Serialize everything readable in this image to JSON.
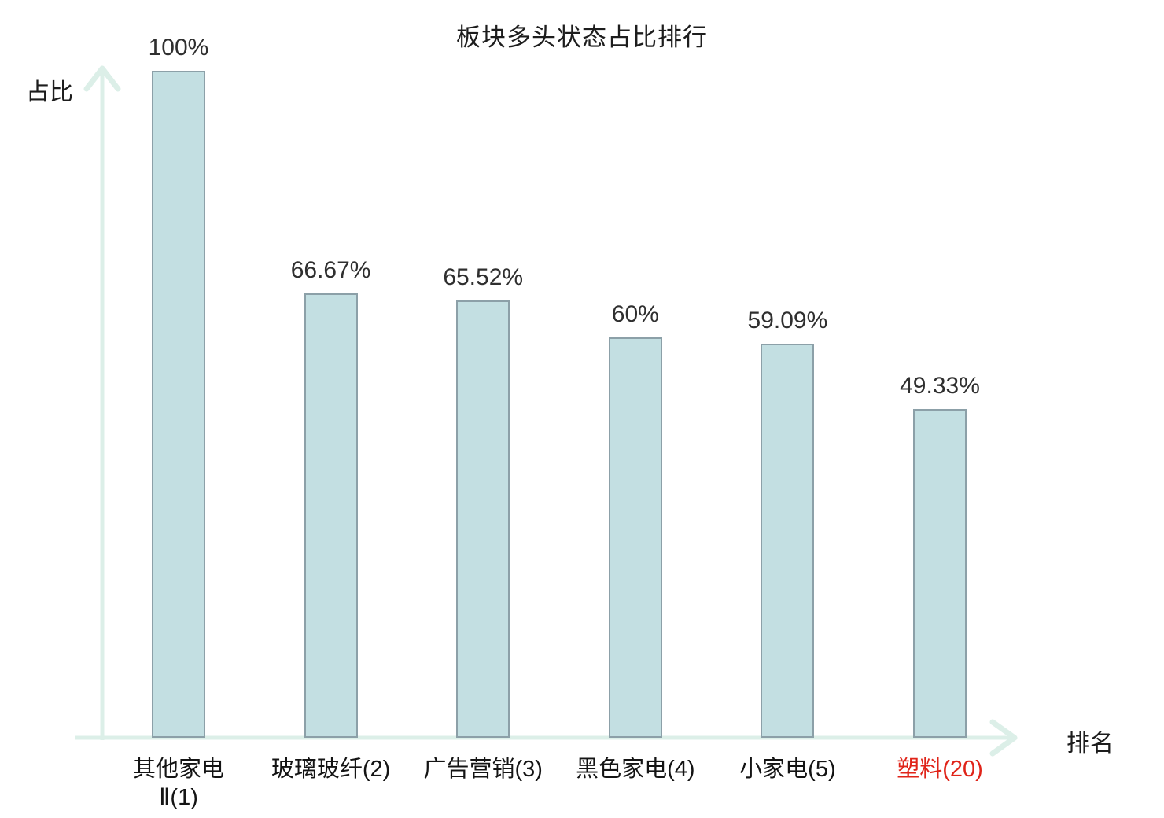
{
  "chart_data": {
    "type": "bar",
    "title": "板块多头状态占比排行",
    "xlabel": "排名",
    "ylabel": "占比",
    "ylim": [
      0,
      100
    ],
    "grid": false,
    "legend": false,
    "categories": [
      "其他家电\nⅡ(1)",
      "玻璃玻纤(2)",
      "广告营销(3)",
      "黑色家电(4)",
      "小家电(5)",
      "塑料(20)"
    ],
    "values": [
      100,
      66.67,
      65.52,
      60,
      59.09,
      49.33
    ],
    "value_labels": [
      "100%",
      "66.67%",
      "65.52%",
      "60%",
      "59.09%",
      "49.33%"
    ],
    "highlight_index": 5,
    "colors": {
      "bar_fill": "#c3dfe2",
      "bar_border": "#8ca0a8",
      "axis": "#dcefe8",
      "value_text": "#2f2f2f",
      "category_text": "#141414",
      "highlight_text": "#e02419",
      "background": "#ffffff"
    }
  }
}
